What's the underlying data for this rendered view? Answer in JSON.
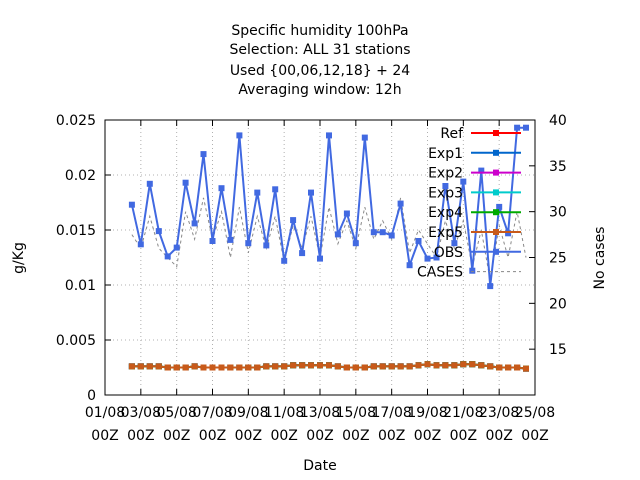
{
  "chart_data": {
    "type": "line",
    "title_lines": [
      "Specific humidity 100hPa",
      "Selection: ALL     31 stations",
      "Used {00,06,12,18} + 24",
      "Averaging window: 12h"
    ],
    "xlabel": "Date",
    "ylabel": "g/Kg",
    "y2label": "No cases",
    "xlim": [
      0,
      24
    ],
    "ylim": [
      0,
      0.025
    ],
    "y2lim": [
      10,
      40
    ],
    "x_ticks": [
      {
        "x": 0,
        "line1": "01/08",
        "line2": "00Z"
      },
      {
        "x": 2,
        "line1": "03/08",
        "line2": "00Z"
      },
      {
        "x": 4,
        "line1": "05/08",
        "line2": "00Z"
      },
      {
        "x": 6,
        "line1": "07/08",
        "line2": "00Z"
      },
      {
        "x": 8,
        "line1": "09/08",
        "line2": "00Z"
      },
      {
        "x": 10,
        "line1": "11/08",
        "line2": "00Z"
      },
      {
        "x": 12,
        "line1": "13/08",
        "line2": "00Z"
      },
      {
        "x": 14,
        "line1": "15/08",
        "line2": "00Z"
      },
      {
        "x": 16,
        "line1": "17/08",
        "line2": "00Z"
      },
      {
        "x": 18,
        "line1": "19/08",
        "line2": "00Z"
      },
      {
        "x": 20,
        "line1": "21/08",
        "line2": "00Z"
      },
      {
        "x": 22,
        "line1": "23/08",
        "line2": "00Z"
      },
      {
        "x": 24,
        "line1": "25/08",
        "line2": "00Z"
      }
    ],
    "y_ticks": [
      "0",
      "0.005",
      "0.01",
      "0.015",
      "0.02",
      "0.025"
    ],
    "y_tick_values": [
      0,
      0.005,
      0.01,
      0.015,
      0.02,
      0.025
    ],
    "y2_ticks": [
      "15",
      "20",
      "25",
      "30",
      "35",
      "40"
    ],
    "y2_tick_values": [
      15,
      20,
      25,
      30,
      35,
      40
    ],
    "grid": true,
    "legend_position": "top-right",
    "x": [
      1.5,
      2.0,
      2.5,
      3.0,
      3.5,
      4.0,
      4.5,
      5.0,
      5.5,
      6.0,
      6.5,
      7.0,
      7.5,
      8.0,
      8.5,
      9.0,
      9.5,
      10.0,
      10.5,
      11.0,
      11.5,
      12.0,
      12.5,
      13.0,
      13.5,
      14.0,
      14.5,
      15.0,
      15.5,
      16.0,
      16.5,
      17.0,
      17.5,
      18.0,
      18.5,
      19.0,
      19.5,
      20.0,
      20.5,
      21.0,
      21.5,
      22.0,
      22.5,
      23.0,
      23.5
    ],
    "series": [
      {
        "name": "Ref",
        "axis": "y1",
        "color": "#ff0000",
        "style": "solid",
        "marker": "square",
        "values": [
          0.0026,
          0.0026,
          0.0026,
          0.0026,
          0.0025,
          0.0025,
          0.0025,
          0.0026,
          0.0025,
          0.0025,
          0.0025,
          0.0025,
          0.0025,
          0.0025,
          0.0025,
          0.0026,
          0.0026,
          0.0026,
          0.0027,
          0.0027,
          0.0027,
          0.0027,
          0.0027,
          0.0026,
          0.0025,
          0.0025,
          0.0025,
          0.0026,
          0.0026,
          0.0026,
          0.0026,
          0.0026,
          0.0027,
          0.0028,
          0.0027,
          0.0027,
          0.0027,
          0.0028,
          0.0028,
          0.0027,
          0.0026,
          0.0025,
          0.0025,
          0.0025,
          0.0024
        ]
      },
      {
        "name": "Exp1",
        "axis": "y1",
        "color": "#0066cc",
        "style": "solid",
        "marker": "square",
        "values": [
          0.0026,
          0.0026,
          0.0026,
          0.0026,
          0.0025,
          0.0025,
          0.0025,
          0.0026,
          0.0025,
          0.0025,
          0.0025,
          0.0025,
          0.0025,
          0.0025,
          0.0025,
          0.0026,
          0.0026,
          0.0026,
          0.0027,
          0.0027,
          0.0027,
          0.0027,
          0.0027,
          0.0026,
          0.0025,
          0.0025,
          0.0025,
          0.0026,
          0.0026,
          0.0026,
          0.0026,
          0.0026,
          0.0027,
          0.0028,
          0.0027,
          0.0027,
          0.0027,
          0.0028,
          0.0028,
          0.0027,
          0.0026,
          0.0025,
          0.0025,
          0.0025,
          0.0024
        ]
      },
      {
        "name": "Exp2",
        "axis": "y1",
        "color": "#cc00cc",
        "style": "solid",
        "marker": "square",
        "values": [
          0.0026,
          0.0026,
          0.0026,
          0.0026,
          0.0025,
          0.0025,
          0.0025,
          0.0026,
          0.0025,
          0.0025,
          0.0025,
          0.0025,
          0.0025,
          0.0025,
          0.0025,
          0.0026,
          0.0026,
          0.0026,
          0.0027,
          0.0027,
          0.0027,
          0.0027,
          0.0027,
          0.0026,
          0.0025,
          0.0025,
          0.0025,
          0.0026,
          0.0026,
          0.0026,
          0.0026,
          0.0026,
          0.0027,
          0.0028,
          0.0027,
          0.0027,
          0.0027,
          0.0028,
          0.0028,
          0.0027,
          0.0026,
          0.0025,
          0.0025,
          0.0025,
          0.0024
        ]
      },
      {
        "name": "Exp3",
        "axis": "y1",
        "color": "#00cccc",
        "style": "solid",
        "marker": "square",
        "values": [
          0.0026,
          0.0026,
          0.0026,
          0.0026,
          0.0025,
          0.0025,
          0.0025,
          0.0026,
          0.0025,
          0.0025,
          0.0025,
          0.0025,
          0.0025,
          0.0025,
          0.0025,
          0.0026,
          0.0026,
          0.0026,
          0.0027,
          0.0027,
          0.0027,
          0.0027,
          0.0027,
          0.0026,
          0.0025,
          0.0025,
          0.0025,
          0.0026,
          0.0026,
          0.0026,
          0.0026,
          0.0026,
          0.0027,
          0.0028,
          0.0027,
          0.0027,
          0.0027,
          0.0028,
          0.0028,
          0.0027,
          0.0026,
          0.0025,
          0.0025,
          0.0025,
          0.0024
        ]
      },
      {
        "name": "Exp4",
        "axis": "y1",
        "color": "#00aa00",
        "style": "solid",
        "marker": "square",
        "values": [
          0.0026,
          0.0026,
          0.0026,
          0.0026,
          0.0025,
          0.0025,
          0.0025,
          0.0026,
          0.0025,
          0.0025,
          0.0025,
          0.0025,
          0.0025,
          0.0025,
          0.0025,
          0.0026,
          0.0026,
          0.0026,
          0.0027,
          0.0027,
          0.0027,
          0.0027,
          0.0027,
          0.0026,
          0.0025,
          0.0025,
          0.0025,
          0.0026,
          0.0026,
          0.0026,
          0.0026,
          0.0026,
          0.0027,
          0.0028,
          0.0027,
          0.0027,
          0.0027,
          0.0028,
          0.0028,
          0.0027,
          0.0026,
          0.0025,
          0.0025,
          0.0025,
          0.0024
        ]
      },
      {
        "name": "Exp5",
        "axis": "y1",
        "color": "#c85a1a",
        "style": "solid",
        "marker": "square",
        "values": [
          0.0026,
          0.0026,
          0.0026,
          0.0026,
          0.0025,
          0.0025,
          0.0025,
          0.0026,
          0.0025,
          0.0025,
          0.0025,
          0.0025,
          0.0025,
          0.0025,
          0.0025,
          0.0026,
          0.0026,
          0.0026,
          0.0027,
          0.0027,
          0.0027,
          0.0027,
          0.0027,
          0.0026,
          0.0025,
          0.0025,
          0.0025,
          0.0026,
          0.0026,
          0.0026,
          0.0026,
          0.0026,
          0.0027,
          0.0028,
          0.0027,
          0.0027,
          0.0027,
          0.0028,
          0.0028,
          0.0027,
          0.0026,
          0.0025,
          0.0025,
          0.0025,
          0.0024
        ]
      },
      {
        "name": "OBS",
        "axis": "y1",
        "color": "#4169e1",
        "style": "solid",
        "marker": "square",
        "values": [
          0.0173,
          0.0137,
          0.0192,
          0.0149,
          0.0126,
          0.0134,
          0.0193,
          0.0156,
          0.0219,
          0.014,
          0.0188,
          0.0141,
          0.0236,
          0.0138,
          0.0184,
          0.0136,
          0.0187,
          0.0122,
          0.0159,
          0.0129,
          0.0184,
          0.0124,
          0.0236,
          0.0146,
          0.0165,
          0.0138,
          0.0234,
          0.0148,
          0.0148,
          0.0145,
          0.0174,
          0.0118,
          0.014,
          0.0124,
          0.0125,
          0.019,
          0.0138,
          0.0194,
          0.0113,
          0.0204,
          0.0099,
          0.0171,
          0.0147,
          0.0243,
          0.0243
        ]
      },
      {
        "name": "CASES",
        "axis": "y2",
        "color": "#888888",
        "style": "dashed",
        "marker": "none",
        "values": [
          27.5,
          26.0,
          29.5,
          26.0,
          25.0,
          24.0,
          30.0,
          27.0,
          31.5,
          27.0,
          30.0,
          25.0,
          30.5,
          25.5,
          29.5,
          26.0,
          29.5,
          24.5,
          28.5,
          26.0,
          29.5,
          25.0,
          30.5,
          26.5,
          29.0,
          26.0,
          30.5,
          27.0,
          29.0,
          27.0,
          31.5,
          25.5,
          28.0,
          26.5,
          25.0,
          29.0,
          26.0,
          29.0,
          24.0,
          28.0,
          22.5,
          28.5,
          25.0,
          30.0,
          25.0
        ]
      }
    ]
  }
}
